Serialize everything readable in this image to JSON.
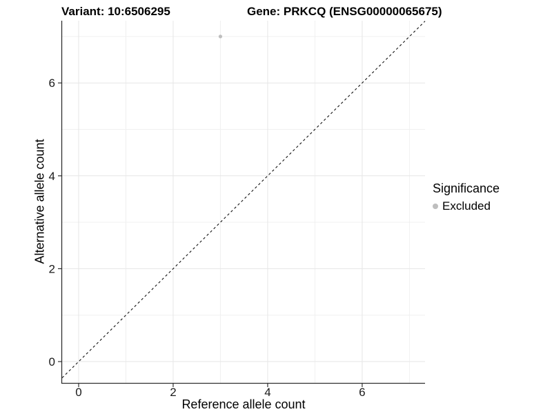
{
  "header": {
    "title_left": "Variant: 10:6506295",
    "title_right": "Gene: PRKCQ (ENSG00000065675)"
  },
  "chart_data": {
    "type": "scatter",
    "xlabel": "Reference allele count",
    "ylabel": "Alternative allele count",
    "xlim": [
      -0.35,
      7.33
    ],
    "ylim": [
      -0.46,
      7.34
    ],
    "x_ticks": [
      0,
      2,
      4,
      6
    ],
    "y_ticks": [
      0,
      2,
      4,
      6
    ],
    "x_minor_grid": [
      1,
      3,
      5,
      7
    ],
    "y_minor_grid": [
      1,
      3,
      5,
      7
    ],
    "grid": "on",
    "reference_line": {
      "slope": 1,
      "intercept": 0,
      "style": "dashed",
      "color": "#111111"
    },
    "series": [
      {
        "name": "Excluded",
        "color": "#bebebe",
        "points": [
          {
            "x": 3,
            "y": 7
          }
        ]
      }
    ],
    "legend": {
      "title": "Significance",
      "position": "right",
      "entries": [
        {
          "label": "Excluded",
          "color": "#bebebe"
        }
      ]
    },
    "colors": {
      "grid_major": "#e6e6e6",
      "grid_minor": "#f0f0f0",
      "axis_line": "#2e2e2e",
      "tick_text": "#1a1a1a"
    }
  }
}
